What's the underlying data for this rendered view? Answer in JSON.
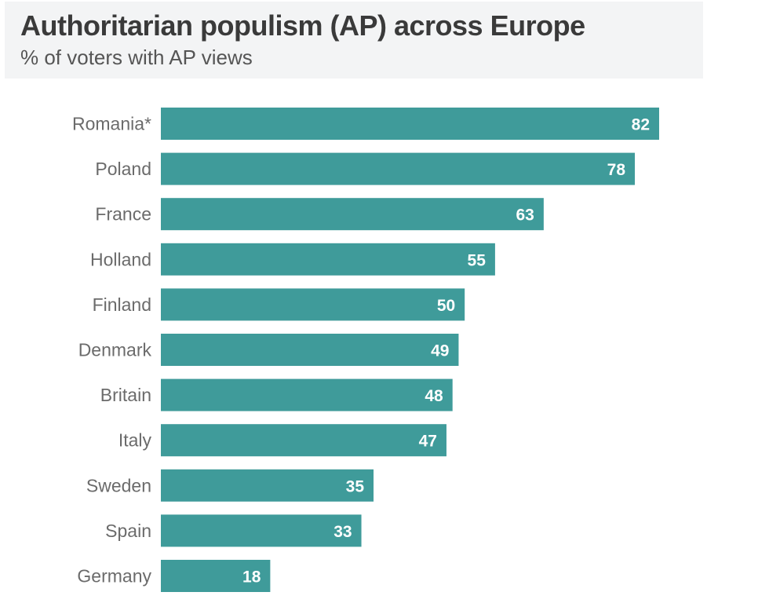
{
  "chart_data": {
    "type": "bar",
    "orientation": "horizontal",
    "title": "Authoritarian populism (AP) across Europe",
    "subtitle": "% of voters with AP views",
    "xlabel": "",
    "ylabel": "",
    "categories": [
      "Romania*",
      "Poland",
      "France",
      "Holland",
      "Finland",
      "Denmark",
      "Britain",
      "Italy",
      "Sweden",
      "Spain",
      "Germany"
    ],
    "values": [
      82,
      78,
      63,
      55,
      50,
      49,
      48,
      47,
      35,
      33,
      18
    ],
    "xlim": [
      0,
      82
    ],
    "grid": false,
    "legend": "none",
    "bar_color": "#3f9b9a",
    "data_labels": "inside-end"
  }
}
